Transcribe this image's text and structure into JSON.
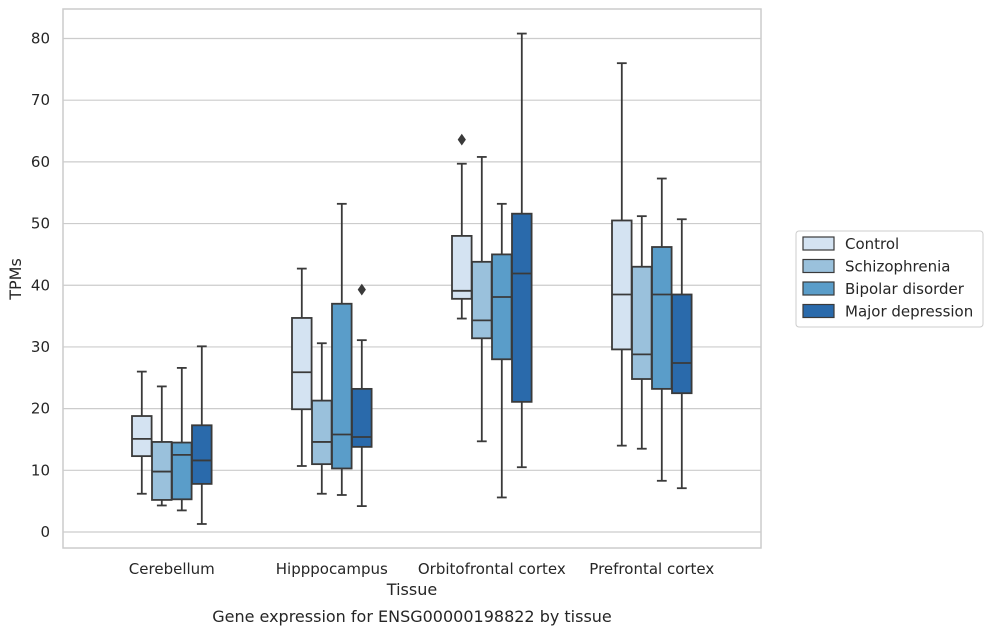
{
  "chart_data": {
    "type": "box",
    "caption": "Gene expression for ENSG00000198822 by tissue",
    "xlabel": "Tissue",
    "ylabel": "TPMs",
    "ylim": [
      -2.5,
      85
    ],
    "yticks": [
      0,
      10,
      20,
      30,
      40,
      50,
      60,
      70,
      80
    ],
    "grid": true,
    "legend_position": "right",
    "categories": [
      "Cerebellum",
      "Hipppocampus",
      "Orbitofrontal cortex",
      "Prefrontal cortex"
    ],
    "series": [
      {
        "name": "Control",
        "color": "#d4e3f2",
        "boxes": [
          {
            "whislo": 6.2,
            "q1": 12.3,
            "med": 15.1,
            "q3": 18.8,
            "whishi": 26.0,
            "fliers": []
          },
          {
            "whislo": 10.7,
            "q1": 19.9,
            "med": 25.9,
            "q3": 34.7,
            "whishi": 42.7,
            "fliers": []
          },
          {
            "whislo": 34.6,
            "q1": 37.8,
            "med": 39.1,
            "q3": 48.0,
            "whishi": 59.7,
            "fliers": [
              63.6
            ]
          },
          {
            "whislo": 14.0,
            "q1": 29.6,
            "med": 38.5,
            "q3": 50.5,
            "whishi": 76.0,
            "fliers": []
          }
        ]
      },
      {
        "name": "Schizophrenia",
        "color": "#9ac1dc",
        "boxes": [
          {
            "whislo": 4.3,
            "q1": 5.2,
            "med": 9.8,
            "q3": 14.6,
            "whishi": 23.6,
            "fliers": []
          },
          {
            "whislo": 6.2,
            "q1": 11.0,
            "med": 14.6,
            "q3": 21.3,
            "whishi": 30.6,
            "fliers": []
          },
          {
            "whislo": 14.7,
            "q1": 31.4,
            "med": 34.3,
            "q3": 43.8,
            "whishi": 60.8,
            "fliers": []
          },
          {
            "whislo": 13.5,
            "q1": 24.8,
            "med": 28.8,
            "q3": 43.0,
            "whishi": 51.2,
            "fliers": []
          }
        ]
      },
      {
        "name": "Bipolar disorder",
        "color": "#5a9dc9",
        "boxes": [
          {
            "whislo": 3.5,
            "q1": 5.3,
            "med": 12.5,
            "q3": 14.5,
            "whishi": 26.6,
            "fliers": []
          },
          {
            "whislo": 6.0,
            "q1": 10.3,
            "med": 15.8,
            "q3": 37.0,
            "whishi": 53.2,
            "fliers": []
          },
          {
            "whislo": 5.6,
            "q1": 28.0,
            "med": 38.1,
            "q3": 45.0,
            "whishi": 53.2,
            "fliers": []
          },
          {
            "whislo": 8.3,
            "q1": 23.2,
            "med": 38.5,
            "q3": 46.2,
            "whishi": 57.3,
            "fliers": []
          }
        ]
      },
      {
        "name": "Major depression",
        "color": "#2a6aab",
        "boxes": [
          {
            "whislo": 1.3,
            "q1": 7.8,
            "med": 11.6,
            "q3": 17.3,
            "whishi": 30.1,
            "fliers": []
          },
          {
            "whislo": 4.2,
            "q1": 13.8,
            "med": 15.4,
            "q3": 23.2,
            "whishi": 31.1,
            "fliers": [
              39.3
            ]
          },
          {
            "whislo": 10.5,
            "q1": 21.1,
            "med": 41.9,
            "q3": 51.6,
            "whishi": 80.8,
            "fliers": []
          },
          {
            "whislo": 7.1,
            "q1": 22.5,
            "med": 27.4,
            "q3": 38.5,
            "whishi": 50.7,
            "fliers": []
          }
        ]
      }
    ]
  }
}
